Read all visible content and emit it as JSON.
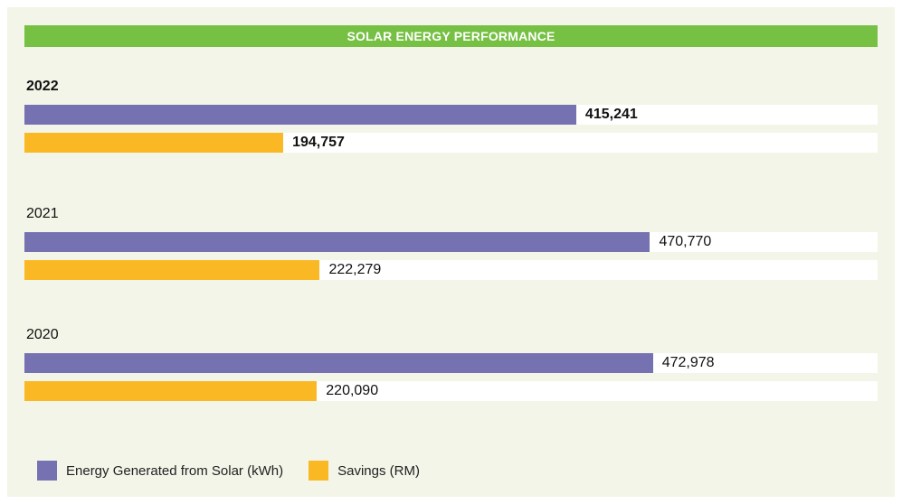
{
  "chart_data": {
    "type": "bar",
    "orientation": "horizontal",
    "title": "SOLAR ENERGY PERFORMANCE",
    "categories": [
      "2022",
      "2021",
      "2020"
    ],
    "highlight_category": "2022",
    "series": [
      {
        "name": "Energy Generated from Solar (kWh)",
        "color": "#7672b2",
        "values": [
          415241,
          470770,
          472978
        ],
        "labels": [
          "415,241",
          "470,770",
          "472,978"
        ]
      },
      {
        "name": "Savings (RM)",
        "color": "#fbb825",
        "values": [
          194757,
          222279,
          220090
        ],
        "labels": [
          "194,757",
          "222,279",
          "220,090"
        ]
      }
    ],
    "xlim": [
      0,
      642000
    ],
    "grid": false,
    "legend_position": "bottom-left"
  }
}
